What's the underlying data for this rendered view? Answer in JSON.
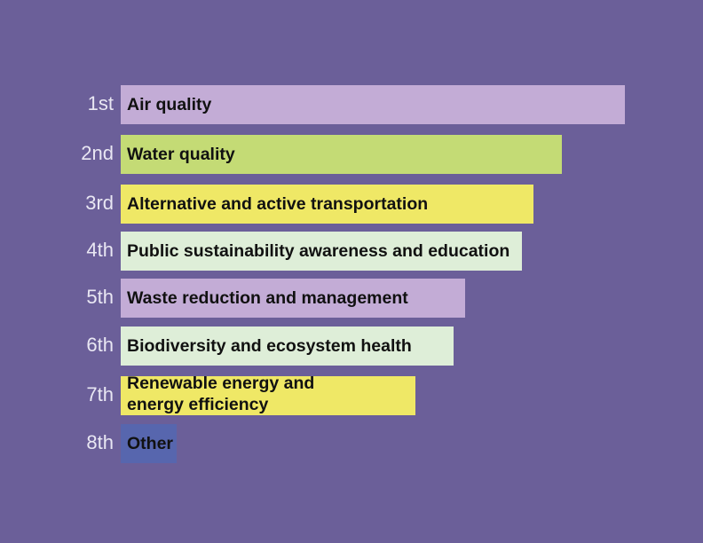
{
  "chart_data": {
    "type": "bar",
    "orientation": "horizontal",
    "title": "",
    "xlabel": "",
    "ylabel": "",
    "categories": [
      "Air quality",
      "Water quality",
      "Alternative and active transportation",
      "Public sustainability awareness and education",
      "Waste reduction and management",
      "Biodiversity and ecosystem health",
      "Renewable energy and energy efficiency",
      "Other"
    ],
    "label_lines": [
      [
        "Air quality"
      ],
      [
        "Water quality"
      ],
      [
        "Alternative and active transportation"
      ],
      [
        "Public sustainability awareness and education"
      ],
      [
        "Waste reduction and management"
      ],
      [
        "Biodiversity and ecosystem health"
      ],
      [
        "Renewable energy and",
        "energy efficiency"
      ],
      [
        "Other"
      ]
    ],
    "ranks": [
      "1st",
      "2nd",
      "3rd",
      "4th",
      "5th",
      "6th",
      "7th",
      "8th"
    ],
    "values": [
      100,
      87.5,
      81.9,
      79.6,
      68.3,
      66,
      58.5,
      11.1
    ],
    "xlim": [
      0,
      100
    ],
    "colors": [
      "#c3acd6",
      "#c4db75",
      "#efe866",
      "#deeed8",
      "#c3acd6",
      "#deeed8",
      "#efe866",
      "#5766ae"
    ]
  }
}
